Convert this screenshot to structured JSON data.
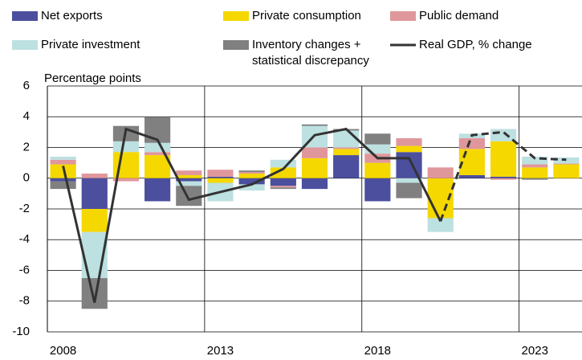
{
  "chart_data": {
    "type": "bar",
    "stacked": true,
    "y_axis_label": "Percentage points",
    "categories": [
      "2008",
      null,
      null,
      null,
      null,
      "2013",
      null,
      null,
      null,
      null,
      "2018",
      null,
      null,
      null,
      null,
      "2023",
      null
    ],
    "series": [
      {
        "name": "Net exports",
        "color": "#4b4f9e",
        "values": [
          -0.2,
          -2.0,
          0,
          -1.5,
          -0.2,
          0.1,
          -0.4,
          -0.5,
          -0.7,
          1.5,
          -1.5,
          1.7,
          0,
          0.2,
          0.1,
          0,
          0
        ]
      },
      {
        "name": "Private consumption",
        "color": "#f5d800",
        "values": [
          0.9,
          -1.5,
          1.7,
          1.5,
          0.2,
          -0.3,
          0.3,
          0.7,
          1.3,
          0.4,
          1.0,
          0.4,
          -2.6,
          1.7,
          2.3,
          0.7,
          0.9
        ]
      },
      {
        "name": "Public demand",
        "color": "#e0979c",
        "values": [
          0.3,
          0.3,
          -0.2,
          0.2,
          0.3,
          0.45,
          0.1,
          -0.1,
          0.7,
          0.1,
          0.6,
          0.5,
          0.7,
          0.7,
          -0.1,
          0.2,
          0.05
        ]
      },
      {
        "name": "Private investment",
        "color": "#bde0e0",
        "values": [
          0.2,
          -3.0,
          0.7,
          0.6,
          -0.3,
          -1.2,
          -0.4,
          0.5,
          1.4,
          1.1,
          0.6,
          -0.3,
          -0.9,
          0.3,
          0.8,
          0.5,
          0.4
        ]
      },
      {
        "name": "Inventory changes + statistical discrepancy",
        "color": "#808080",
        "values": [
          -0.5,
          -2.0,
          1.0,
          1.7,
          -1.3,
          0,
          0.1,
          -0.1,
          0.1,
          0.1,
          0.7,
          -1.0,
          0,
          0,
          0,
          -0.1,
          0
        ]
      },
      {
        "name": "Real GDP, % change",
        "type": "line",
        "color": "#333333",
        "dashed_from_index": 12,
        "values": [
          0.8,
          -8.1,
          3.2,
          2.5,
          -1.4,
          -0.9,
          -0.4,
          0.6,
          2.8,
          3.2,
          1.3,
          1.3,
          -2.8,
          2.8,
          3.0,
          1.3,
          1.2
        ]
      }
    ],
    "ylim": [
      -10,
      6
    ],
    "yticks": [
      -10,
      -8,
      -6,
      -4,
      -2,
      0,
      2,
      4,
      6
    ],
    "grid": true
  }
}
